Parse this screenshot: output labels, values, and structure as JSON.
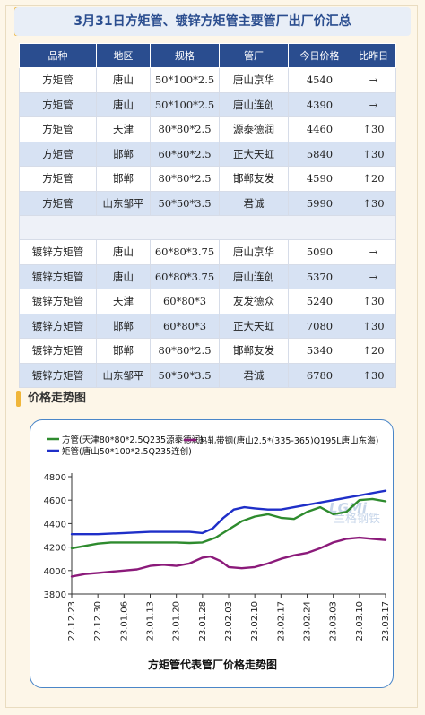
{
  "header": {
    "title": "3月31日方矩管、镀锌方矩管主要管厂出厂价汇总"
  },
  "table": {
    "columns": [
      "品种",
      "地区",
      "规格",
      "管厂",
      "今日价格",
      "比昨日"
    ],
    "groups": [
      [
        [
          "方矩管",
          "唐山",
          "50*100*2.5",
          "唐山京华",
          "4540",
          "→"
        ],
        [
          "方矩管",
          "唐山",
          "50*100*2.5",
          "唐山连创",
          "4390",
          "→"
        ],
        [
          "方矩管",
          "天津",
          "80*80*2.5",
          "源泰德润",
          "4460",
          "↑30"
        ],
        [
          "方矩管",
          "邯郸",
          "60*80*2.5",
          "正大天虹",
          "5840",
          "↑30"
        ],
        [
          "方矩管",
          "邯郸",
          "80*80*2.5",
          "邯郸友发",
          "4590",
          "↑20"
        ],
        [
          "方矩管",
          "山东邹平",
          "50*50*3.5",
          "君诚",
          "5990",
          "↑30"
        ]
      ],
      [
        [
          "镀锌方矩管",
          "唐山",
          "60*80*3.75",
          "唐山京华",
          "5090",
          "→"
        ],
        [
          "镀锌方矩管",
          "唐山",
          "60*80*3.75",
          "唐山连创",
          "5370",
          "→"
        ],
        [
          "镀锌方矩管",
          "天津",
          "60*80*3",
          "友发德众",
          "5240",
          "↑30"
        ],
        [
          "镀锌方矩管",
          "邯郸",
          "60*80*3",
          "正大天虹",
          "7080",
          "↑30"
        ],
        [
          "镀锌方矩管",
          "邯郸",
          "80*80*2.5",
          "邯郸友发",
          "5340",
          "↑20"
        ],
        [
          "镀锌方矩管",
          "山东邹平",
          "50*50*3.5",
          "君诚",
          "6780",
          "↑30"
        ]
      ]
    ]
  },
  "section": {
    "title": "价格走势图"
  },
  "watermark": {
    "logo_text": "LGMi",
    "text": "兰格钢铁"
  },
  "chart_data": {
    "type": "line",
    "title": "方矩管代表管厂价格走势图",
    "xlabel": "",
    "ylabel": "",
    "ylim": [
      3800,
      4800
    ],
    "yticks": [
      3800,
      4000,
      4200,
      4400,
      4600,
      4800
    ],
    "x_ticks": [
      "22.12.23",
      "22.12.30",
      "23.01.06",
      "23.01.13",
      "23.01.20",
      "23.01.28",
      "23.02.03",
      "23.02.10",
      "23.02.17",
      "23.02.24",
      "23.03.03",
      "23.03.10",
      "23.03.17"
    ],
    "grid": false,
    "legend": "top",
    "series": [
      {
        "name": "方管(天津80*80*2.5Q235源泰德润)",
        "color": "#2e8b2e",
        "points": [
          [
            0,
            4190
          ],
          [
            0.5,
            4210
          ],
          [
            1,
            4230
          ],
          [
            1.5,
            4240
          ],
          [
            2,
            4240
          ],
          [
            3,
            4240
          ],
          [
            4,
            4240
          ],
          [
            4.5,
            4235
          ],
          [
            5,
            4240
          ],
          [
            5.5,
            4280
          ],
          [
            6,
            4350
          ],
          [
            6.5,
            4420
          ],
          [
            7,
            4460
          ],
          [
            7.5,
            4480
          ],
          [
            8,
            4450
          ],
          [
            8.5,
            4440
          ],
          [
            9,
            4500
          ],
          [
            9.5,
            4540
          ],
          [
            10,
            4480
          ],
          [
            10.5,
            4500
          ],
          [
            11,
            4600
          ],
          [
            11.5,
            4610
          ],
          [
            12,
            4590
          ]
        ]
      },
      {
        "name": "矩管(唐山50*100*2.5Q235连创)",
        "color": "#1f2fc8",
        "points": [
          [
            0,
            4310
          ],
          [
            1,
            4310
          ],
          [
            2,
            4320
          ],
          [
            3,
            4330
          ],
          [
            4,
            4330
          ],
          [
            4.5,
            4330
          ],
          [
            5,
            4320
          ],
          [
            5.4,
            4360
          ],
          [
            5.8,
            4450
          ],
          [
            6.2,
            4520
          ],
          [
            6.6,
            4540
          ],
          [
            7,
            4530
          ],
          [
            7.5,
            4520
          ],
          [
            8,
            4520
          ],
          [
            8.5,
            4540
          ],
          [
            9,
            4560
          ],
          [
            9.5,
            4580
          ],
          [
            10,
            4600
          ],
          [
            10.5,
            4620
          ],
          [
            11,
            4640
          ],
          [
            11.5,
            4660
          ],
          [
            12,
            4680
          ]
        ]
      },
      {
        "name": "热轧带钢(唐山2.5*(335-365)Q195L唐山东海)",
        "color": "#8b1a7a",
        "points": [
          [
            0,
            3950
          ],
          [
            0.5,
            3970
          ],
          [
            1,
            3980
          ],
          [
            1.5,
            3990
          ],
          [
            2,
            4000
          ],
          [
            2.5,
            4010
          ],
          [
            3,
            4040
          ],
          [
            3.5,
            4050
          ],
          [
            4,
            4040
          ],
          [
            4.5,
            4060
          ],
          [
            5,
            4110
          ],
          [
            5.3,
            4120
          ],
          [
            5.7,
            4080
          ],
          [
            6,
            4030
          ],
          [
            6.5,
            4020
          ],
          [
            7,
            4030
          ],
          [
            7.5,
            4060
          ],
          [
            8,
            4100
          ],
          [
            8.5,
            4130
          ],
          [
            9,
            4150
          ],
          [
            9.5,
            4190
          ],
          [
            10,
            4240
          ],
          [
            10.5,
            4270
          ],
          [
            11,
            4280
          ],
          [
            11.5,
            4270
          ],
          [
            12,
            4260
          ]
        ]
      }
    ]
  },
  "colors": {
    "header_bg": "#2a4d8f",
    "row_alt": "#d7e2f3",
    "up": "#e0211d",
    "accent": "#f0b63a"
  }
}
